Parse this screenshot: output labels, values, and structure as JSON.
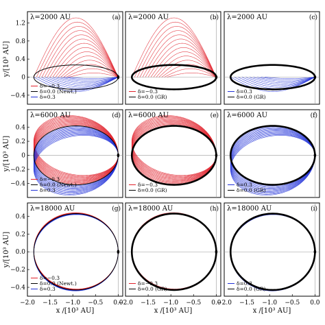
{
  "chart_data": {
    "type": "line",
    "title": "",
    "xlabel": "x /[10³ AU]",
    "ylabel": "y/[10³ AU]",
    "xlim": [
      -2.0,
      0.1
    ],
    "x_ticks": [
      "−2.0",
      "−1.5",
      "−1.0",
      "−0.5",
      "0.0"
    ],
    "rows": [
      {
        "lambda_label": "λ=2000 AU",
        "ylim": [
          -0.6,
          1.45
        ],
        "y_ticks": [
          "1.2",
          "0.8",
          "0.4",
          "0",
          "−0.4"
        ]
      },
      {
        "lambda_label": "λ=6000 AU",
        "ylim": [
          -0.6,
          0.65
        ],
        "y_ticks": [
          "0.4",
          "0.2",
          "0",
          "−0.2",
          "−0.4"
        ]
      },
      {
        "lambda_label": "λ=18000 AU",
        "ylim": [
          -0.5,
          0.55
        ],
        "y_ticks": [
          "0.4",
          "0.2",
          "0.0",
          "−0.2",
          "−0.4"
        ]
      }
    ],
    "panels": [
      {
        "id": "(a)",
        "row": 0,
        "col": 0,
        "series": [
          "δ=−0.3",
          "δ=0.0 (Newt.)",
          "δ=0.3"
        ]
      },
      {
        "id": "(b)",
        "row": 0,
        "col": 1,
        "series": [
          "δ=−0.3",
          "δ=0.0 (GR)"
        ]
      },
      {
        "id": "(c)",
        "row": 0,
        "col": 2,
        "series": [
          "δ=0.3",
          "δ=0.0 (GR)"
        ]
      },
      {
        "id": "(d)",
        "row": 1,
        "col": 0,
        "series": [
          "δ=−0.3",
          "δ=0.0 (Newt.)",
          "δ=0.3"
        ]
      },
      {
        "id": "(e)",
        "row": 1,
        "col": 1,
        "series": [
          "δ=−0.3",
          "δ=0.0 (GR)"
        ]
      },
      {
        "id": "(f)",
        "row": 1,
        "col": 2,
        "series": [
          "δ=0.3",
          "δ=0.0 (GR)"
        ]
      },
      {
        "id": "(g)",
        "row": 2,
        "col": 0,
        "series": [
          "δ=−0.3",
          "δ=0.0 (Newt.)",
          "δ=0.3"
        ]
      },
      {
        "id": "(h)",
        "row": 2,
        "col": 1,
        "series": [
          "δ=−0.3",
          "δ=0.0 (GR)"
        ]
      },
      {
        "id": "(i)",
        "row": 2,
        "col": 2,
        "series": [
          "δ=0.3",
          "δ=0.0 (GR)"
        ]
      }
    ],
    "orbit": {
      "a": 0.93,
      "b_rows": [
        0.27,
        0.42,
        0.43
      ],
      "focus_x": 0.0
    },
    "families": [
      {
        "row": 0,
        "kind": "red",
        "amplitude": 1.25,
        "curves": 14
      },
      {
        "row": 0,
        "kind": "blue",
        "amplitude": 0.32,
        "curves": 10
      },
      {
        "row": 1,
        "kind": "red",
        "amplitude": 0.2,
        "curves": 14
      },
      {
        "row": 1,
        "kind": "blue",
        "amplitude": 0.2,
        "curves": 12
      },
      {
        "row": 2,
        "kind": "red",
        "amplitude": 0.015,
        "curves": 6
      },
      {
        "row": 2,
        "kind": "blue",
        "amplitude": 0.015,
        "curves": 6
      }
    ],
    "colors": {
      "neg": "#e0202a",
      "pos": "#2030d8",
      "base": "#000000",
      "grid": "#9a9a9a"
    },
    "grid": true
  }
}
